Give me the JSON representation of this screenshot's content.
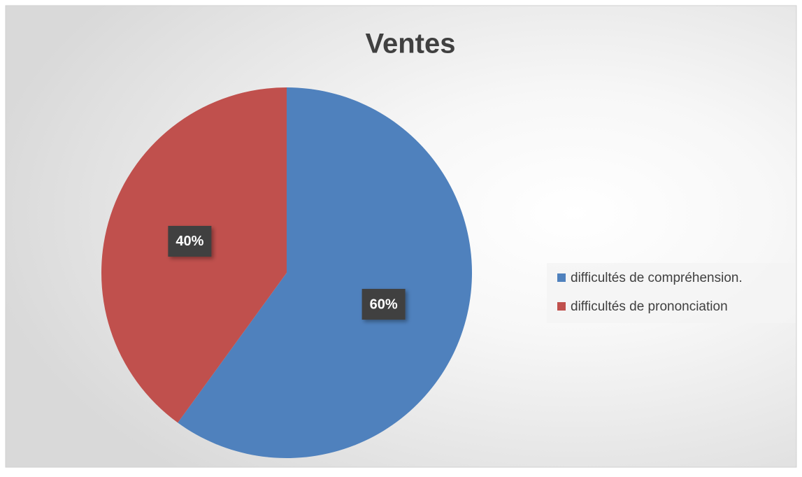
{
  "chart_data": {
    "type": "pie",
    "title": "Ventes",
    "categories": [
      "difficultés de compréhension.",
      "difficultés de prononciation"
    ],
    "values": [
      60,
      40
    ],
    "value_labels": [
      "60%",
      "40%"
    ],
    "colors": [
      "#4f81bd",
      "#c0504d"
    ],
    "legend": "right"
  }
}
